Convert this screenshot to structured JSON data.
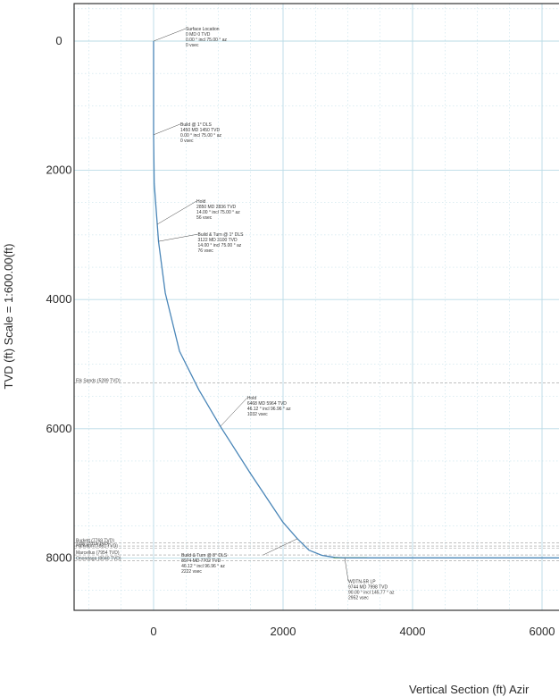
{
  "chart_data": {
    "type": "line",
    "ylabel": "TVD (ft) Scale = 1:600.00(ft)",
    "xlabel": "Vertical Section (ft) Azir",
    "x_ticks": [
      0,
      2000,
      4000,
      6000
    ],
    "y_ticks": [
      0,
      2000,
      4000,
      6000,
      8000
    ],
    "xlim": [
      -1250,
      6250
    ],
    "ylim": [
      -550,
      8880
    ],
    "y_inverted": true,
    "grid": true,
    "colors": {
      "well_path": "#4a86b8",
      "target_line": "#8fbf3f",
      "grid": "#b9dbe6"
    },
    "series": [
      {
        "x": [
          0,
          0,
          10,
          56,
          76,
          180,
          400,
          700,
          1032,
          1500,
          2000,
          2222,
          2400,
          2600,
          2800,
          2952,
          6400
        ],
        "y": [
          0,
          1450,
          2200,
          2836,
          3100,
          3900,
          4800,
          5400,
          5964,
          6700,
          7450,
          7702,
          7880,
          7960,
          7992,
          7998,
          7998
        ]
      }
    ],
    "annotations": [
      {
        "x": 0,
        "y": 0,
        "lines": [
          "Surface Location",
          "0 MD 0 TVD",
          "0.00 ° incl 75.00 ° az",
          "0 vsec"
        ]
      },
      {
        "x": 0,
        "y": 1450,
        "lines": [
          "Build @ 1° DLS",
          "1450 MD 1450 TVD",
          "0.00 ° incl 75.00 ° az",
          "0 vsec"
        ]
      },
      {
        "x": 56,
        "y": 2836,
        "lines": [
          "Hold",
          "2850 MD 2836 TVD",
          "14.00 ° incl 75.00 ° az",
          "56 vsec"
        ]
      },
      {
        "x": 76,
        "y": 3100,
        "lines": [
          "Build & Turn @ 1° DLS",
          "3122 MD 3100 TVD",
          "14.00 ° incl 75.00 ° az",
          "76 vsec"
        ]
      },
      {
        "x": 1032,
        "y": 5964,
        "lines": [
          "Hold",
          "6468 MD 5964 TVD",
          "46.12 ° incl 96.96 ° az",
          "1032 vsec"
        ]
      },
      {
        "x": 2222,
        "y": 7702,
        "lines": [
          "Build & Turn @ 8° DLS",
          "8974 MD 7702 TVD",
          "46.12 ° incl 96.96 ° az",
          "2222 vsec"
        ]
      },
      {
        "x": 2952,
        "y": 7998,
        "lines": [
          "WDTN-5R LP",
          "9744 MD 7998 TVD",
          "90.00 ° incl 145.77 ° az",
          "2952 vsec"
        ]
      }
    ],
    "formations": [
      {
        "name": "Elk Sands (5289 TVD)",
        "tvd": 5289
      },
      {
        "name": "Burkett (7769 TVD)",
        "tvd": 7769
      },
      {
        "name": "Tully (7815 TVD)",
        "tvd": 7815
      },
      {
        "name": "Hamilton (7851 TVD)",
        "tvd": 7851
      },
      {
        "name": "Marcellus (7954 TVD)",
        "tvd": 7954
      },
      {
        "name": "Onondaga (8040 TVD)",
        "tvd": 8040
      }
    ]
  }
}
